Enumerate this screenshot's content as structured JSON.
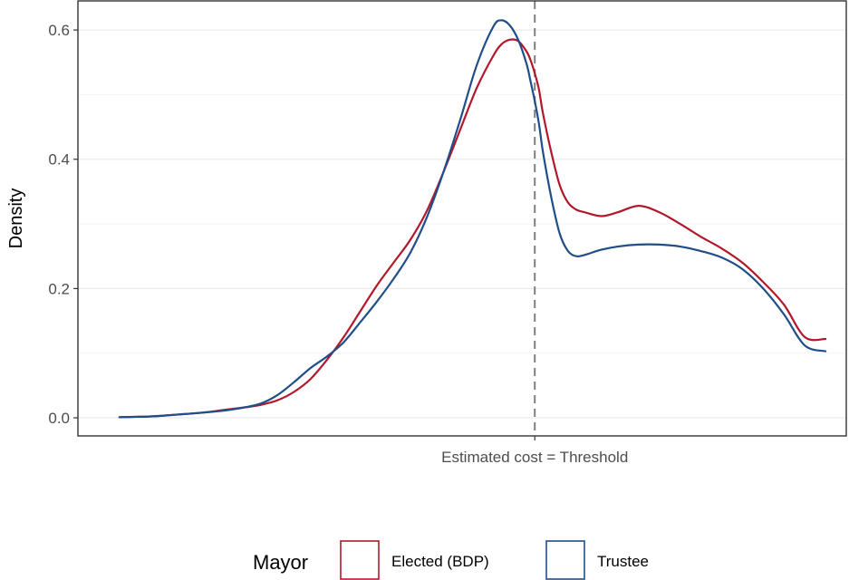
{
  "chart_data": {
    "type": "line",
    "ylabel": "Density",
    "xlabel": "",
    "ylim": [
      -0.028,
      0.645
    ],
    "xlim": [
      -1.1,
      0.75
    ],
    "y_ticks": [
      0.0,
      0.2,
      0.4,
      0.6
    ],
    "y_tick_labels": [
      "0.0",
      "0.2",
      "0.4",
      "0.6"
    ],
    "grid": true,
    "annotation": {
      "text": "Estimated cost = Threshold",
      "x": 0,
      "line_style": "dashed",
      "color": "#7f7f7f"
    },
    "legend": {
      "title": "Mayor",
      "position": "bottom"
    },
    "x": [
      -1.0,
      -0.96,
      -0.93,
      -0.9,
      -0.86,
      -0.8,
      -0.75,
      -0.7,
      -0.66,
      -0.62,
      -0.58,
      -0.54,
      -0.5,
      -0.46,
      -0.42,
      -0.38,
      -0.34,
      -0.3,
      -0.26,
      -0.22,
      -0.18,
      -0.14,
      -0.1,
      -0.08,
      -0.06,
      -0.04,
      -0.02,
      -0.01,
      0.0,
      0.01,
      0.02,
      0.04,
      0.06,
      0.08,
      0.1,
      0.12,
      0.16,
      0.2,
      0.25,
      0.3,
      0.35,
      0.4,
      0.45,
      0.5,
      0.55,
      0.6,
      0.65,
      0.7
    ],
    "series": [
      {
        "name": "Elected (BDP)",
        "color": "#b2182b",
        "values": [
          0.001,
          0.0015,
          0.002,
          0.003,
          0.005,
          0.008,
          0.012,
          0.016,
          0.02,
          0.027,
          0.04,
          0.06,
          0.09,
          0.125,
          0.165,
          0.205,
          0.24,
          0.275,
          0.32,
          0.38,
          0.445,
          0.51,
          0.56,
          0.578,
          0.585,
          0.583,
          0.567,
          0.553,
          0.533,
          0.508,
          0.47,
          0.41,
          0.36,
          0.333,
          0.322,
          0.318,
          0.312,
          0.318,
          0.328,
          0.318,
          0.3,
          0.28,
          0.262,
          0.24,
          0.21,
          0.175,
          0.125,
          0.122
        ]
      },
      {
        "name": "Trustee",
        "color": "#1f4e89",
        "values": [
          0.001,
          0.0015,
          0.002,
          0.003,
          0.005,
          0.008,
          0.011,
          0.016,
          0.022,
          0.035,
          0.055,
          0.077,
          0.095,
          0.117,
          0.148,
          0.18,
          0.215,
          0.255,
          0.31,
          0.38,
          0.46,
          0.545,
          0.605,
          0.615,
          0.607,
          0.585,
          0.548,
          0.52,
          0.49,
          0.455,
          0.41,
          0.34,
          0.285,
          0.258,
          0.25,
          0.252,
          0.26,
          0.265,
          0.268,
          0.268,
          0.265,
          0.258,
          0.248,
          0.23,
          0.2,
          0.16,
          0.112,
          0.103
        ]
      }
    ]
  }
}
